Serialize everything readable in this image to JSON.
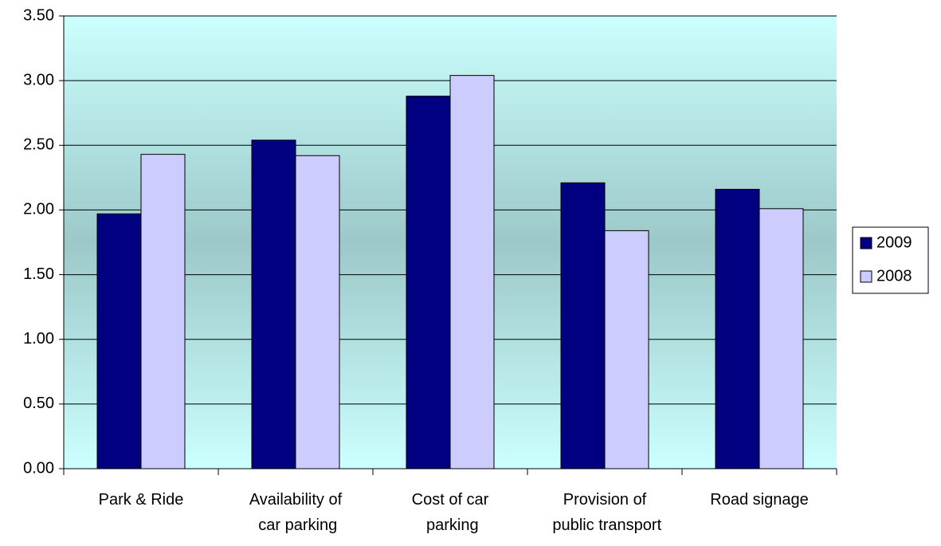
{
  "chart_data": {
    "type": "bar",
    "categories": [
      "Park & Ride",
      "Availability of car parking",
      "Cost of car parking",
      "Provision of public transport",
      "Road signage"
    ],
    "series": [
      {
        "name": "2009",
        "color": "#000080",
        "values": [
          1.97,
          2.54,
          2.88,
          2.21,
          2.16
        ]
      },
      {
        "name": "2008",
        "color": "#ccccff",
        "values": [
          2.43,
          2.42,
          3.04,
          1.84,
          2.01
        ]
      }
    ],
    "ylim": [
      0,
      3.5
    ],
    "yticks": [
      {
        "value": 0,
        "label": "0.00"
      },
      {
        "value": 0.5,
        "label": "0.50"
      },
      {
        "value": 1,
        "label": "1.00"
      },
      {
        "value": 1.5,
        "label": "1.50"
      },
      {
        "value": 2,
        "label": "2.00"
      },
      {
        "value": 2.5,
        "label": "2.50"
      },
      {
        "value": 3,
        "label": "3.00"
      },
      {
        "value": 3.5,
        "label": "3.50"
      }
    ],
    "grid": true,
    "legend": "right"
  }
}
